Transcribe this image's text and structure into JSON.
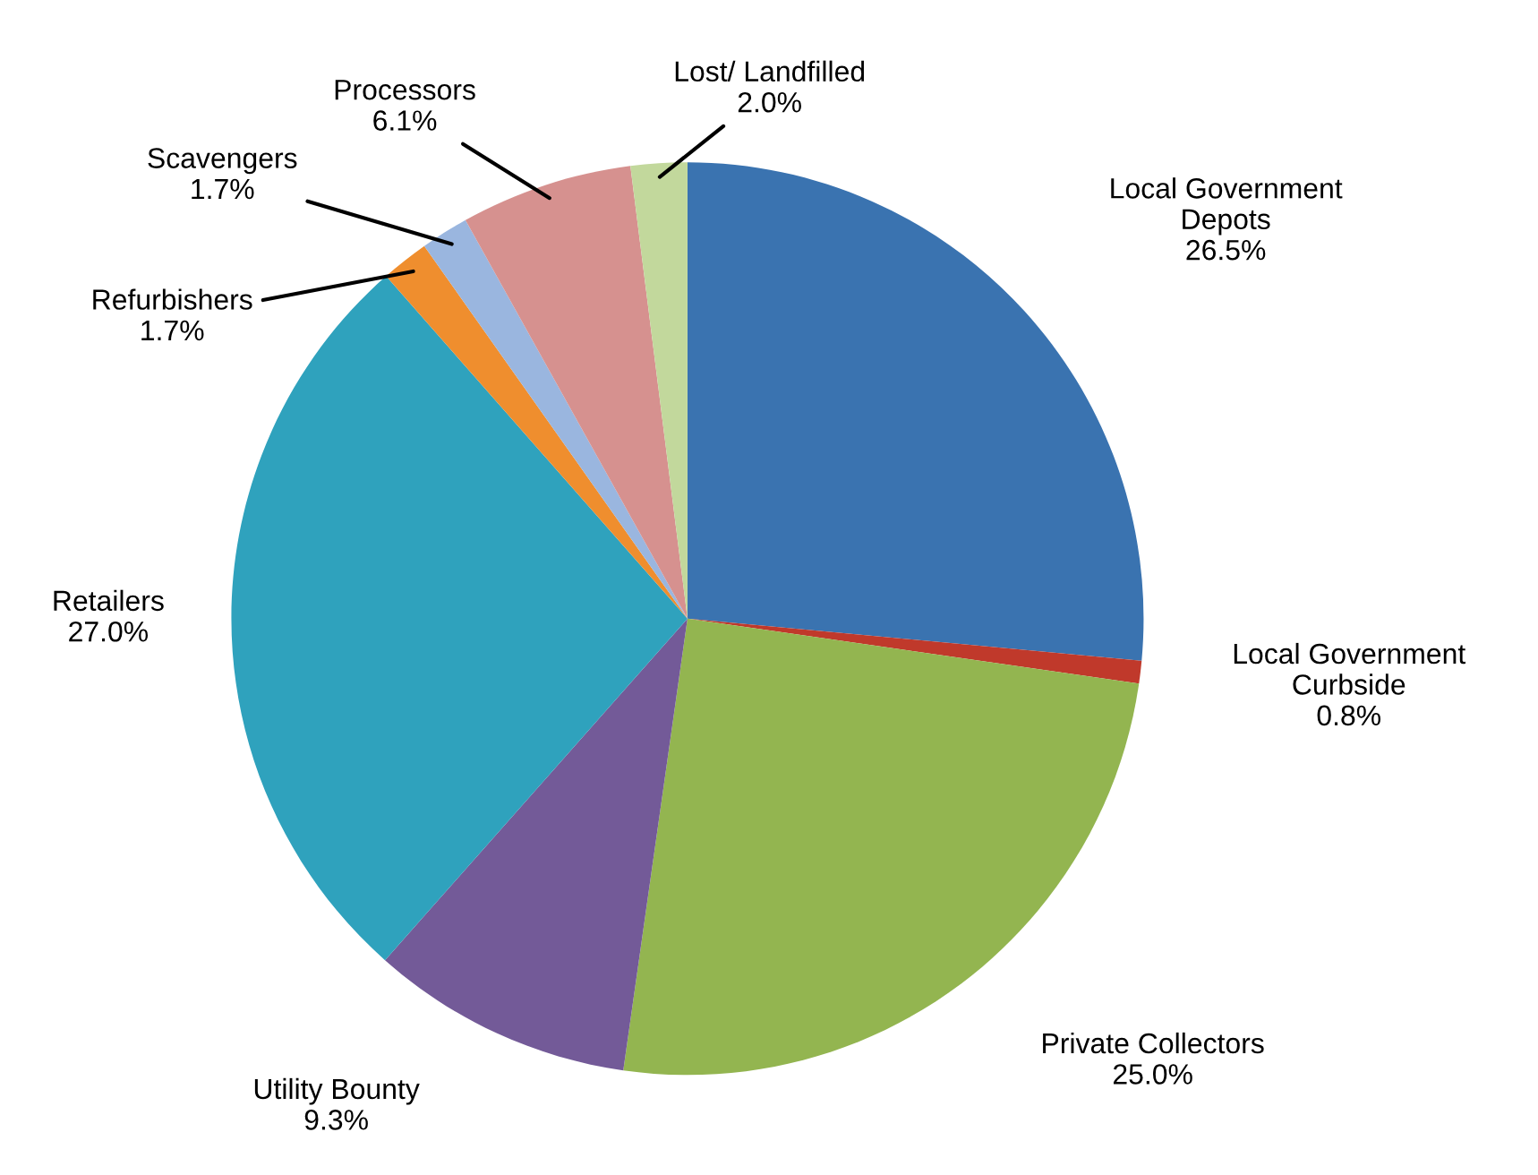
{
  "chart_data": {
    "type": "pie",
    "categories": [
      "Local Government\nDepots",
      "Local Government\nCurbside",
      "Private Collectors",
      "Utility Bounty",
      "Retailers",
      "Refurbishers",
      "Scavengers",
      "Processors",
      "Lost/ Landfilled"
    ],
    "values": [
      26.5,
      0.8,
      25.0,
      9.3,
      27.0,
      1.7,
      1.7,
      6.1,
      2.0
    ],
    "colors": [
      "#3a73b0",
      "#c0392b",
      "#93b550",
      "#735a98",
      "#2fa2bd",
      "#ef8e2e",
      "#9ab6df",
      "#d6918f",
      "#c2d89c"
    ],
    "value_labels": [
      "26.5%",
      "0.8%",
      "25.0%",
      "9.3%",
      "27.0%",
      "1.7%",
      "1.7%",
      "6.1%",
      "2.0%"
    ],
    "legend": false
  }
}
